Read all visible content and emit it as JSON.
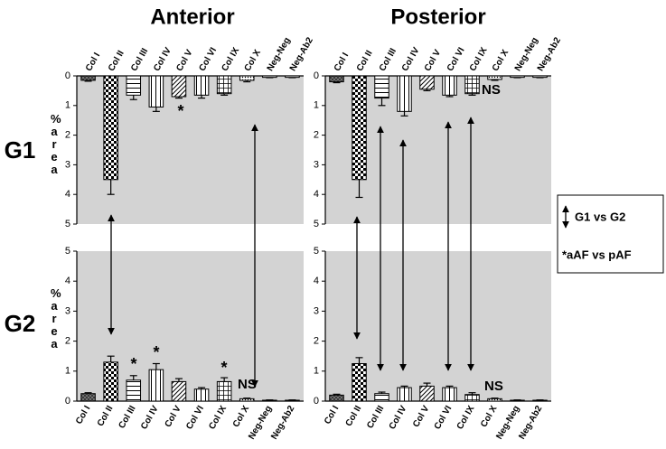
{
  "column_titles": [
    "Anterior",
    "Posterior"
  ],
  "row_labels": [
    "G1",
    "G2"
  ],
  "legend": [
    "G1 vs G2",
    "*aAF vs pAF"
  ],
  "chart_data": [
    {
      "type": "bar",
      "inverted": true,
      "ylabel": "% area",
      "background": "#d3d3d3",
      "color": "#ffffff",
      "categories": [
        "Col I",
        "Col II",
        "Col III",
        "Col IV",
        "Col V",
        "Col VI",
        "Col IX",
        "Col X",
        "Neg-Neg",
        "Neg-Ab2"
      ],
      "patterns": [
        "crosshatch",
        "checker",
        "hlines",
        "vlines",
        "diag",
        "vlines",
        "grid",
        "dots",
        "none",
        "none"
      ],
      "values": [
        0.15,
        3.5,
        0.65,
        1.05,
        0.7,
        0.65,
        0.6,
        0.15,
        0.05,
        0.05
      ],
      "errors": [
        0.03,
        0.5,
        0.15,
        0.15,
        0.05,
        0.1,
        0.05,
        0.05,
        0.01,
        0.01
      ],
      "ylim": [
        0,
        5
      ],
      "yticks": [
        0,
        1,
        2,
        3,
        4,
        5
      ],
      "annotations": [
        "*"
      ]
    },
    {
      "type": "bar",
      "inverted": true,
      "background": "#d3d3d3",
      "color": "#ffffff",
      "categories": [
        "Col I",
        "Col II",
        "Col III",
        "Col IV",
        "Col V",
        "Col VI",
        "Col IX",
        "Col X",
        "Neg-Neg",
        "Neg-Ab2"
      ],
      "patterns": [
        "crosshatch",
        "checker",
        "hlines",
        "vlines",
        "diag",
        "vlines",
        "grid",
        "dots",
        "none",
        "none"
      ],
      "values": [
        0.2,
        3.5,
        0.75,
        1.2,
        0.45,
        0.65,
        0.6,
        0.12,
        0.05,
        0.05
      ],
      "errors": [
        0.03,
        0.6,
        0.25,
        0.15,
        0.05,
        0.05,
        0.05,
        0.03,
        0.01,
        0.01
      ],
      "ylim": [
        0,
        5
      ],
      "yticks": [
        0,
        1,
        2,
        3,
        4,
        5
      ],
      "annotations": [
        "NS"
      ]
    },
    {
      "type": "bar",
      "inverted": false,
      "ylabel": "% area",
      "background": "#d3d3d3",
      "color": "#ffffff",
      "categories": [
        "Col I",
        "Col II",
        "Col III",
        "Col IV",
        "Col V",
        "Col VI",
        "Col IX",
        "Col X",
        "Neg-Neg",
        "Neg-Ab2"
      ],
      "patterns": [
        "crosshatch",
        "checker",
        "hlines",
        "vlines",
        "diag",
        "vlines",
        "grid",
        "dots",
        "none",
        "none"
      ],
      "values": [
        0.25,
        1.3,
        0.7,
        1.05,
        0.65,
        0.4,
        0.65,
        0.08,
        0.03,
        0.03
      ],
      "errors": [
        0.03,
        0.2,
        0.15,
        0.2,
        0.1,
        0.05,
        0.13,
        0.02,
        0.01,
        0.01
      ],
      "ylim": [
        0,
        5
      ],
      "yticks": [
        0,
        1,
        2,
        3,
        4,
        5
      ],
      "annotations": [
        "*",
        "*",
        "*",
        "NS"
      ]
    },
    {
      "type": "bar",
      "inverted": false,
      "background": "#d3d3d3",
      "color": "#ffffff",
      "categories": [
        "Col I",
        "Col II",
        "Col III",
        "Col IV",
        "Col V",
        "Col VI",
        "Col IX",
        "Col X",
        "Neg-Neg",
        "Neg-Ab2"
      ],
      "patterns": [
        "crosshatch",
        "checker",
        "hlines",
        "vlines",
        "diag",
        "vlines",
        "grid",
        "dots",
        "none",
        "none"
      ],
      "values": [
        0.2,
        1.25,
        0.25,
        0.45,
        0.5,
        0.45,
        0.22,
        0.08,
        0.03,
        0.03
      ],
      "errors": [
        0.03,
        0.2,
        0.05,
        0.05,
        0.1,
        0.05,
        0.06,
        0.02,
        0.01,
        0.01
      ],
      "ylim": [
        0,
        5
      ],
      "yticks": [
        0,
        1,
        2,
        3,
        4,
        5
      ],
      "annotations": [
        "NS"
      ]
    }
  ]
}
